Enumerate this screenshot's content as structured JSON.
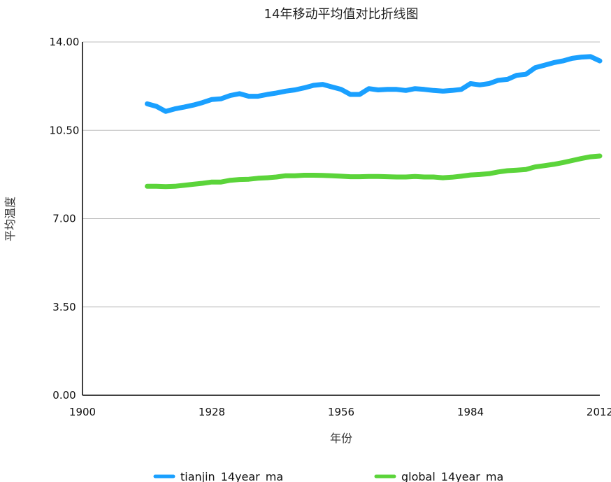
{
  "chart_data": {
    "type": "line",
    "title": "14年移动平均值对比折线图",
    "xlabel": "年份",
    "ylabel": "平均温度",
    "xlim": [
      1900,
      2012
    ],
    "ylim": [
      0,
      14
    ],
    "x_ticks": [
      "1900",
      "1928",
      "1956",
      "1984",
      "2012"
    ],
    "y_ticks": [
      "0.00",
      "3.50",
      "7.00",
      "10.50",
      "14.00"
    ],
    "grid": "horizontal",
    "legend_position": "bottom",
    "colors": {
      "tianjin": "#1aa0ff",
      "global": "#5bd43a"
    },
    "series": [
      {
        "name": "tianjin_14year_ma",
        "x": [
          1914,
          1916,
          1918,
          1920,
          1922,
          1924,
          1926,
          1928,
          1930,
          1932,
          1934,
          1936,
          1938,
          1940,
          1942,
          1944,
          1946,
          1948,
          1950,
          1952,
          1954,
          1956,
          1958,
          1960,
          1962,
          1964,
          1966,
          1968,
          1970,
          1972,
          1974,
          1976,
          1978,
          1980,
          1982,
          1984,
          1986,
          1988,
          1990,
          1992,
          1994,
          1996,
          1998,
          2000,
          2002,
          2004,
          2006,
          2008,
          2010,
          2012
        ],
        "values": [
          11.55,
          11.45,
          11.25,
          11.35,
          11.42,
          11.5,
          11.6,
          11.72,
          11.75,
          11.88,
          11.95,
          11.85,
          11.85,
          11.92,
          11.98,
          12.05,
          12.1,
          12.18,
          12.28,
          12.32,
          12.22,
          12.12,
          11.92,
          11.92,
          12.15,
          12.1,
          12.12,
          12.12,
          12.08,
          12.15,
          12.12,
          12.08,
          12.05,
          12.08,
          12.12,
          12.35,
          12.3,
          12.35,
          12.48,
          12.52,
          12.68,
          12.72,
          12.98,
          13.08,
          13.18,
          13.25,
          13.35,
          13.4,
          13.42,
          13.25
        ]
      },
      {
        "name": "global_14year_ma",
        "x": [
          1914,
          1916,
          1918,
          1920,
          1922,
          1924,
          1926,
          1928,
          1930,
          1932,
          1934,
          1936,
          1938,
          1940,
          1942,
          1944,
          1946,
          1948,
          1950,
          1952,
          1954,
          1956,
          1958,
          1960,
          1962,
          1964,
          1966,
          1968,
          1970,
          1972,
          1974,
          1976,
          1978,
          1980,
          1982,
          1984,
          1986,
          1988,
          1990,
          1992,
          1994,
          1996,
          1998,
          2000,
          2002,
          2004,
          2006,
          2008,
          2010,
          2012
        ],
        "values": [
          8.28,
          8.28,
          8.27,
          8.28,
          8.32,
          8.36,
          8.4,
          8.45,
          8.45,
          8.52,
          8.55,
          8.56,
          8.6,
          8.62,
          8.65,
          8.7,
          8.7,
          8.72,
          8.72,
          8.71,
          8.7,
          8.68,
          8.66,
          8.66,
          8.67,
          8.67,
          8.66,
          8.65,
          8.65,
          8.67,
          8.65,
          8.65,
          8.62,
          8.64,
          8.68,
          8.73,
          8.75,
          8.78,
          8.85,
          8.9,
          8.92,
          8.95,
          9.05,
          9.1,
          9.15,
          9.22,
          9.3,
          9.38,
          9.45,
          9.48
        ]
      }
    ]
  }
}
